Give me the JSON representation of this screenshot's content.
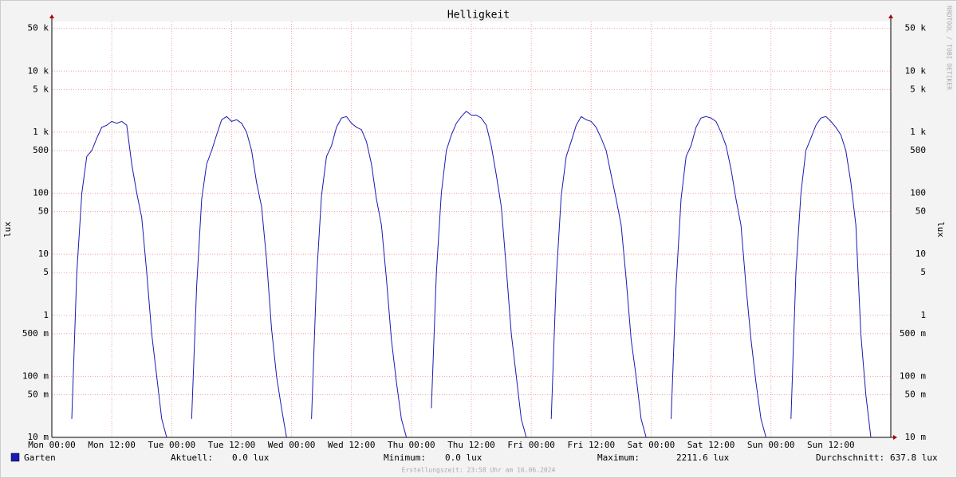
{
  "chart_data": {
    "type": "line",
    "title": "Helligkeit",
    "ylabel": "lux",
    "log_y": true,
    "grid": true,
    "side_text": "RRDTOOL / TOBI OETIKER",
    "footer": "Erstellungszeit: 23:58 Uhr am 16.06.2024",
    "xlim": [
      0,
      168
    ],
    "xticks": [
      {
        "value": 0,
        "label": "Mon 00:00"
      },
      {
        "value": 12,
        "label": "Mon 12:00"
      },
      {
        "value": 24,
        "label": "Tue 00:00"
      },
      {
        "value": 36,
        "label": "Tue 12:00"
      },
      {
        "value": 48,
        "label": "Wed 00:00"
      },
      {
        "value": 60,
        "label": "Wed 12:00"
      },
      {
        "value": 72,
        "label": "Thu 00:00"
      },
      {
        "value": 84,
        "label": "Thu 12:00"
      },
      {
        "value": 96,
        "label": "Fri 00:00"
      },
      {
        "value": 108,
        "label": "Fri 12:00"
      },
      {
        "value": 120,
        "label": "Sat 00:00"
      },
      {
        "value": 132,
        "label": "Sat 12:00"
      },
      {
        "value": 144,
        "label": "Sun 00:00"
      },
      {
        "value": 156,
        "label": "Sun 12:00"
      }
    ],
    "ylim": [
      0.01,
      65000
    ],
    "yticks": [
      {
        "value": 0.01,
        "label": "10 m"
      },
      {
        "value": 0.05,
        "label": "50 m"
      },
      {
        "value": 0.1,
        "label": "100 m"
      },
      {
        "value": 0.5,
        "label": "500 m"
      },
      1,
      5,
      10,
      50,
      100,
      500,
      {
        "value": 1000,
        "label": "1 k"
      },
      {
        "value": 5000,
        "label": "5 k"
      },
      {
        "value": 10000,
        "label": "10 k"
      },
      {
        "value": 50000,
        "label": "50 k"
      }
    ],
    "x": [
      0,
      1,
      2,
      3,
      4,
      5,
      6,
      7,
      8,
      9,
      10,
      11,
      12,
      13,
      14,
      15,
      16,
      17,
      18,
      19,
      20,
      21,
      22,
      23,
      24,
      25,
      26,
      27,
      28,
      29,
      30,
      31,
      32,
      33,
      34,
      35,
      36,
      37,
      38,
      39,
      40,
      41,
      42,
      43,
      44,
      45,
      46,
      47,
      48,
      49,
      50,
      51,
      52,
      53,
      54,
      55,
      56,
      57,
      58,
      59,
      60,
      61,
      62,
      63,
      64,
      65,
      66,
      67,
      68,
      69,
      70,
      71,
      72,
      73,
      74,
      75,
      76,
      77,
      78,
      79,
      80,
      81,
      82,
      83,
      84,
      85,
      86,
      87,
      88,
      89,
      90,
      91,
      92,
      93,
      94,
      95,
      96,
      97,
      98,
      99,
      100,
      101,
      102,
      103,
      104,
      105,
      106,
      107,
      108,
      109,
      110,
      111,
      112,
      113,
      114,
      115,
      116,
      117,
      118,
      119,
      120,
      121,
      122,
      123,
      124,
      125,
      126,
      127,
      128,
      129,
      130,
      131,
      132,
      133,
      134,
      135,
      136,
      137,
      138,
      139,
      140,
      141,
      142,
      143,
      144,
      145,
      146,
      147,
      148,
      149,
      150,
      151,
      152,
      153,
      154,
      155,
      156,
      157,
      158,
      159,
      160,
      161,
      162,
      163,
      164,
      165,
      166,
      167
    ],
    "series": [
      {
        "name": "Garten",
        "color": "#1a1ab4",
        "values": [
          null,
          null,
          null,
          null,
          0.02,
          5,
          100,
          400,
          500,
          800,
          1200,
          1300,
          1500,
          1400,
          1500,
          1300,
          300,
          100,
          40,
          5,
          0.5,
          0.1,
          0.02,
          0.01,
          null,
          null,
          null,
          null,
          0.02,
          3,
          80,
          300,
          500,
          900,
          1600,
          1800,
          1500,
          1600,
          1400,
          1000,
          500,
          150,
          60,
          8,
          0.6,
          0.1,
          0.03,
          0.01,
          null,
          null,
          null,
          null,
          0.02,
          4,
          90,
          400,
          600,
          1200,
          1700,
          1800,
          1400,
          1200,
          1100,
          700,
          300,
          80,
          30,
          4,
          0.4,
          0.08,
          0.02,
          0.01,
          null,
          null,
          null,
          null,
          0.03,
          5,
          100,
          500,
          900,
          1400,
          1800,
          2200,
          1900,
          1900,
          1700,
          1300,
          600,
          200,
          60,
          6,
          0.5,
          0.1,
          0.02,
          0.01,
          null,
          null,
          null,
          null,
          0.02,
          4,
          90,
          400,
          700,
          1300,
          1800,
          1600,
          1500,
          1200,
          800,
          500,
          200,
          80,
          30,
          4,
          0.4,
          0.1,
          0.02,
          0.01,
          null,
          null,
          null,
          null,
          0.02,
          3,
          80,
          400,
          600,
          1200,
          1700,
          1800,
          1700,
          1500,
          1000,
          600,
          250,
          80,
          30,
          3,
          0.4,
          0.08,
          0.02,
          0.01,
          null,
          null,
          null,
          null,
          0.02,
          5,
          100,
          500,
          800,
          1300,
          1700,
          1800,
          1500,
          1200,
          900,
          500,
          150,
          30,
          0.5,
          0.05,
          0.01,
          null,
          null,
          null
        ]
      }
    ],
    "stats": [
      {
        "label": "Aktuell:",
        "value": "0.0 lux"
      },
      {
        "label": "Minimum:",
        "value": "0.0 lux"
      },
      {
        "label": "Maximum:",
        "value": "2211.6 lux"
      },
      {
        "label": "Durchschnitt:",
        "value": "637.8 lux"
      }
    ]
  }
}
